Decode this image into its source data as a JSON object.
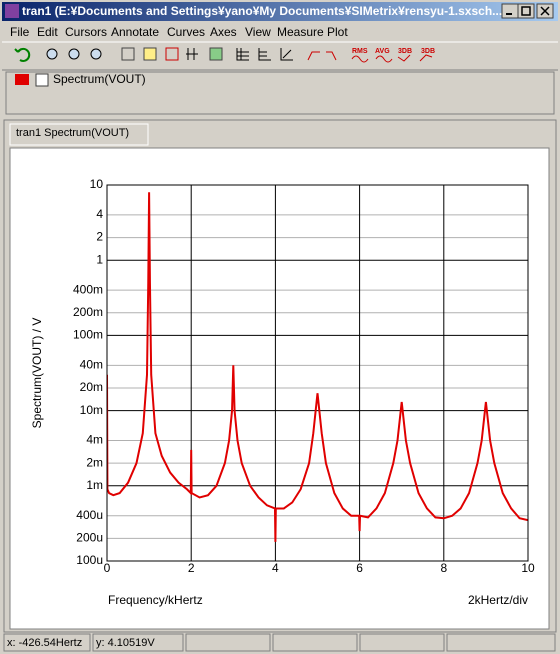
{
  "window": {
    "title": "tran1 (E:¥Documents and Settings¥yano¥My Documents¥SIMetrix¥rensyu-1.sxsch..."
  },
  "menu": [
    "File",
    "Edit",
    "Cursors",
    "Annotate",
    "Curves",
    "Axes",
    "View",
    "Measure",
    "Plot"
  ],
  "toolbar_labels": [
    "RMS",
    "AVG",
    "3DB",
    "3DB"
  ],
  "tab": "tran1 Spectrum(VOUT)",
  "status": [
    "x: -426.54Hertz",
    "y: 4.10519V"
  ],
  "chart_data": {
    "type": "line",
    "x_label": "Frequency/kHertz",
    "y_label": "Spectrum(VOUT) / V",
    "annotation": "2kHertz/div",
    "yscale": "log",
    "xlim": [
      0,
      10
    ],
    "ylim": [
      0.0001,
      10
    ],
    "xticks": [
      0,
      2,
      4,
      6,
      8,
      10
    ],
    "yticks": [
      10,
      4,
      2,
      1,
      {
        "value": 0.4,
        "label": "400m"
      },
      {
        "value": 0.2,
        "label": "200m"
      },
      {
        "value": 0.1,
        "label": "100m"
      },
      {
        "value": 0.04,
        "label": "40m"
      },
      {
        "value": 0.02,
        "label": "20m"
      },
      {
        "value": 0.01,
        "label": "10m"
      },
      {
        "value": 0.004,
        "label": "4m"
      },
      {
        "value": 0.002,
        "label": "2m"
      },
      {
        "value": 0.001,
        "label": "1m"
      },
      {
        "value": 0.0004,
        "label": "400u"
      },
      {
        "value": 0.0002,
        "label": "200u"
      },
      {
        "value": 0.0001,
        "label": "100u"
      }
    ],
    "grid": true,
    "x": [
      0,
      0.01,
      0.05,
      0.15,
      0.3,
      0.5,
      0.7,
      0.85,
      0.95,
      0.98,
      1.0,
      1.02,
      1.05,
      1.15,
      1.3,
      1.5,
      1.7,
      1.9,
      1.99,
      2.0,
      2.01,
      2.2,
      2.4,
      2.6,
      2.8,
      2.9,
      2.97,
      3.0,
      3.03,
      3.1,
      3.2,
      3.4,
      3.6,
      3.8,
      3.99,
      4.0,
      4.01,
      4.2,
      4.4,
      4.6,
      4.8,
      4.9,
      5.0,
      5.1,
      5.2,
      5.4,
      5.6,
      5.8,
      5.99,
      6.0,
      6.01,
      6.2,
      6.4,
      6.6,
      6.8,
      6.9,
      7.0,
      7.1,
      7.2,
      7.4,
      7.6,
      7.8,
      8.0,
      8.2,
      8.4,
      8.6,
      8.8,
      8.9,
      9.0,
      9.1,
      9.2,
      9.4,
      9.6,
      9.8,
      10.0
    ],
    "series": [
      {
        "name": "Spectrum(VOUT)",
        "color": "#e00000",
        "values": [
          0.03,
          0.0009,
          0.0008,
          0.00075,
          0.0008,
          0.0011,
          0.002,
          0.005,
          0.03,
          0.5,
          8,
          0.5,
          0.03,
          0.005,
          0.0025,
          0.0015,
          0.0011,
          0.0009,
          0.0008,
          0.003,
          0.0008,
          0.0007,
          0.00075,
          0.001,
          0.002,
          0.004,
          0.01,
          0.04,
          0.01,
          0.004,
          0.002,
          0.001,
          0.0007,
          0.00055,
          0.0005,
          0.00018,
          0.0005,
          0.0005,
          0.0006,
          0.0009,
          0.002,
          0.005,
          0.017,
          0.005,
          0.002,
          0.0008,
          0.0005,
          0.0004,
          0.0004,
          0.00025,
          0.0004,
          0.00038,
          0.0005,
          0.0008,
          0.002,
          0.004,
          0.013,
          0.004,
          0.002,
          0.0008,
          0.0005,
          0.00038,
          0.00037,
          0.0004,
          0.0005,
          0.0008,
          0.002,
          0.004,
          0.013,
          0.004,
          0.002,
          0.0008,
          0.0005,
          0.00037,
          0.00035
        ]
      }
    ]
  }
}
